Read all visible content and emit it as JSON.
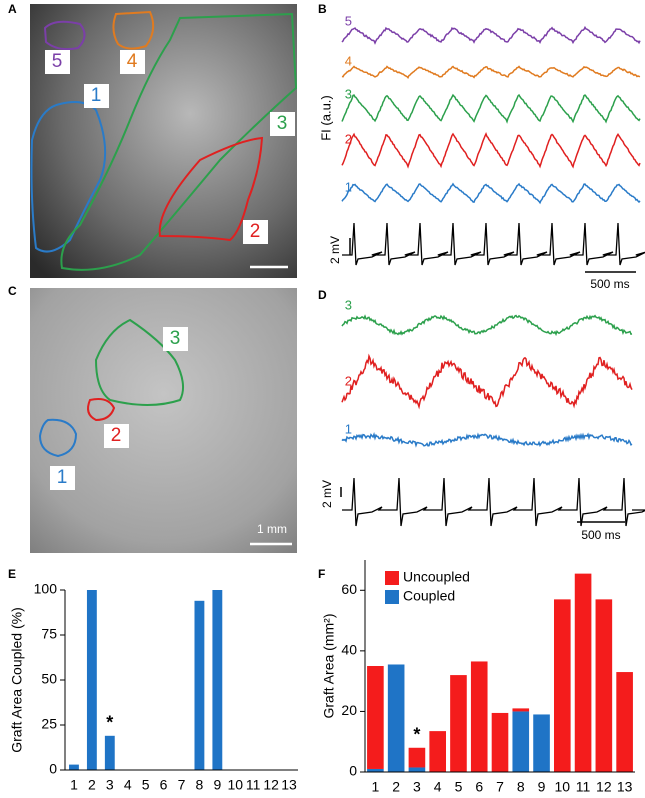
{
  "panel_a": {
    "letter": "A",
    "labels": [
      "5",
      "4",
      "1",
      "3",
      "2"
    ]
  },
  "panel_b": {
    "letter": "B",
    "trace_labels": [
      "5",
      "4",
      "3",
      "2",
      "1"
    ],
    "y_label": "FI (a.u.)",
    "voltage_scale": "2 mV",
    "time_scale": "500 ms"
  },
  "panel_c": {
    "letter": "C",
    "labels": [
      "3",
      "2",
      "1"
    ],
    "scale_bar": "1 mm"
  },
  "panel_d": {
    "letter": "D",
    "trace_labels": [
      "3",
      "2",
      "1"
    ],
    "voltage_scale": "2 mV",
    "time_scale": "500 ms"
  },
  "chart_data": [
    {
      "type": "bar",
      "panel": "E",
      "y_label": "Graft Area Coupled (%)",
      "annotation": "*",
      "categories": [
        "1",
        "2",
        "3",
        "4",
        "5",
        "6",
        "7",
        "8",
        "9",
        "10",
        "11",
        "12",
        "13"
      ],
      "values": [
        3,
        100,
        19,
        0,
        0,
        0,
        0,
        94,
        100,
        0,
        0,
        0,
        0
      ],
      "color": "#1f74c6",
      "ylim": [
        0,
        100
      ],
      "yticks": [
        0,
        25,
        50,
        75,
        100
      ]
    },
    {
      "type": "stacked_bar",
      "panel": "F",
      "y_label": "Graft Area (mm²)",
      "annotation": "*",
      "categories": [
        "1",
        "2",
        "3",
        "4",
        "5",
        "6",
        "7",
        "8",
        "9",
        "10",
        "11",
        "12",
        "13"
      ],
      "series": [
        {
          "name": "Uncoupled",
          "color": "#f41c1c",
          "values": [
            34,
            0,
            6.5,
            13.5,
            32,
            36.5,
            19.5,
            1,
            0,
            57,
            65.5,
            57,
            33
          ]
        },
        {
          "name": "Coupled",
          "color": "#1f74c6",
          "values": [
            1,
            35.5,
            1.5,
            0,
            0,
            0,
            0,
            20,
            19,
            0,
            0,
            0,
            0
          ]
        }
      ],
      "ylim": [
        0,
        70
      ],
      "yticks": [
        0,
        20,
        40,
        60
      ]
    }
  ]
}
